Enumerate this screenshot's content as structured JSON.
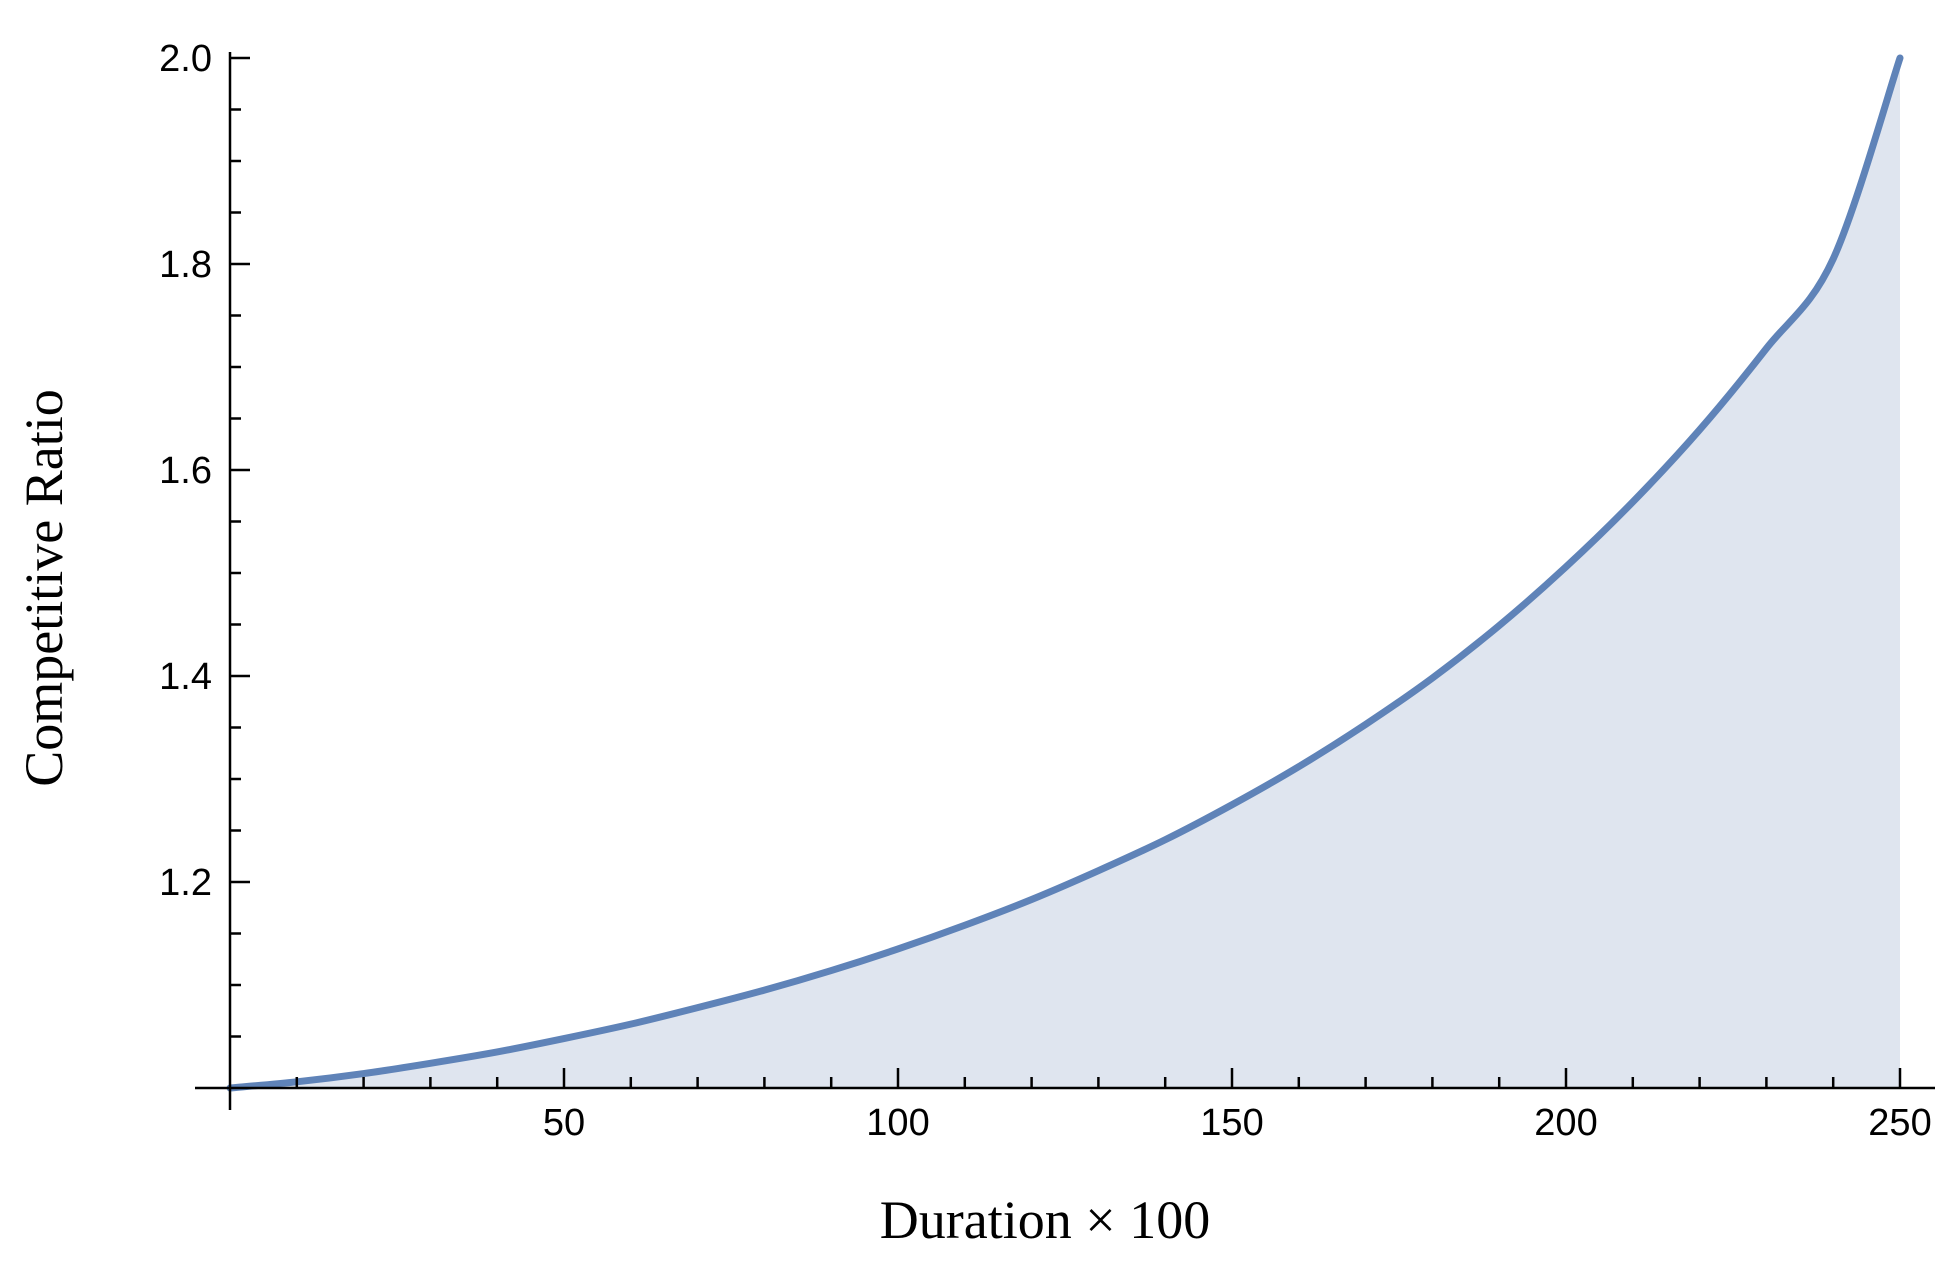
{
  "chart_data": {
    "type": "area",
    "title": "",
    "xlabel": "Duration × 100",
    "ylabel": "Competitive Ratio",
    "xlim": [
      0,
      250
    ],
    "ylim": [
      1.0,
      2.0
    ],
    "x_ticks": [
      50,
      100,
      150,
      200,
      250
    ],
    "x_minor_ticks": [
      10,
      20,
      30,
      40,
      60,
      70,
      80,
      90,
      110,
      120,
      130,
      140,
      160,
      170,
      180,
      190,
      210,
      220,
      230,
      240
    ],
    "y_ticks": [
      1.2,
      1.4,
      1.6,
      1.8,
      2.0
    ],
    "y_minor_ticks": [
      1.05,
      1.1,
      1.15,
      1.25,
      1.3,
      1.35,
      1.45,
      1.5,
      1.55,
      1.65,
      1.7,
      1.75,
      1.85,
      1.9,
      1.95
    ],
    "grid": false,
    "colors": {
      "line": "#5f83b8",
      "fill": "#dfe5ef",
      "axis": "#000000"
    },
    "series": [
      {
        "x": [
          0,
          10,
          20,
          30,
          40,
          50,
          60,
          70,
          80,
          90,
          100,
          110,
          120,
          130,
          140,
          150,
          160,
          170,
          180,
          190,
          200,
          210,
          220,
          230,
          240,
          250
        ],
        "y": [
          1.0,
          1.006,
          1.014,
          1.024,
          1.035,
          1.048,
          1.062,
          1.078,
          1.095,
          1.114,
          1.135,
          1.158,
          1.183,
          1.211,
          1.241,
          1.275,
          1.312,
          1.353,
          1.398,
          1.449,
          1.506,
          1.569,
          1.639,
          1.718,
          1.805,
          2.0
        ]
      }
    ]
  }
}
